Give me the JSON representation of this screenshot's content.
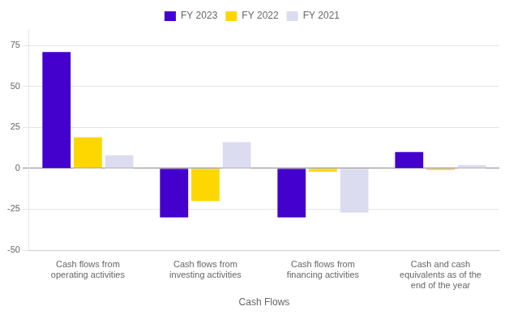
{
  "chart_data": {
    "type": "bar",
    "categories": [
      "Cash flows from\noperating activities",
      "Cash flows from\ninvesting activities",
      "Cash flows from\nfinancing activities",
      "Cash and cash\nequivalents as of the\nend of the year"
    ],
    "series": [
      {
        "name": "FY 2023",
        "color": "#4400CC",
        "values": [
          71,
          -30,
          -30,
          10
        ]
      },
      {
        "name": "FY 2022",
        "color": "#FFD700",
        "values": [
          19,
          -20,
          -2,
          -1
        ]
      },
      {
        "name": "FY 2021",
        "color": "#DCDCF0",
        "values": [
          8,
          16,
          -27,
          2
        ]
      }
    ],
    "xlabel": "Cash Flows",
    "ylim": [
      -50,
      85
    ],
    "yticks": [
      -50,
      -25,
      0,
      25,
      50,
      75
    ],
    "grid": true,
    "legend": "top"
  }
}
